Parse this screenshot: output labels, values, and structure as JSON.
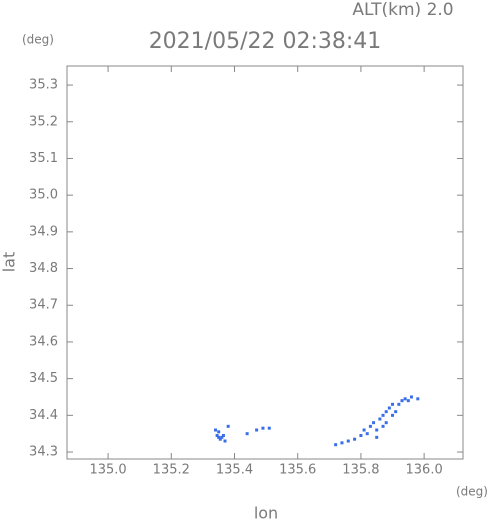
{
  "chart_data": {
    "type": "scatter",
    "title": "ALT(km) 2.0",
    "subtitle": "2021/05/22 02:38:41",
    "y_unit": "(deg)",
    "x_unit": "(deg)",
    "ylabel": "lat",
    "xlabel": "lon",
    "color": "#3a6ee8",
    "xlim": [
      134.87,
      136.123
    ],
    "ylim": [
      34.281,
      35.352
    ],
    "xticks": [
      {
        "value": 135.0,
        "label": "135.0"
      },
      135.2,
      135.4,
      135.6,
      135.8,
      {
        "value": 136.0,
        "label": "136.0"
      }
    ],
    "yticks": [
      34.3,
      34.4,
      34.5,
      34.6,
      34.7,
      34.8,
      34.9,
      {
        "value": 35.0,
        "label": "35.0"
      },
      35.1,
      35.2,
      35.3
    ],
    "x": [
      135.34,
      135.35,
      135.345,
      135.36,
      135.355,
      135.37,
      135.365,
      135.38,
      135.35,
      135.44,
      135.47,
      135.49,
      135.51,
      135.72,
      135.74,
      135.76,
      135.78,
      135.8,
      135.81,
      135.82,
      135.83,
      135.84,
      135.85,
      135.86,
      135.87,
      135.88,
      135.88,
      135.89,
      135.9,
      135.9,
      135.91,
      135.92,
      135.93,
      135.94,
      135.95,
      135.96,
      135.98,
      135.85,
      135.87
    ],
    "values": [
      34.36,
      34.355,
      34.345,
      34.34,
      34.335,
      34.33,
      34.345,
      34.37,
      34.34,
      34.35,
      34.36,
      34.365,
      34.365,
      34.32,
      34.325,
      34.33,
      34.335,
      34.345,
      34.36,
      34.35,
      34.37,
      34.38,
      34.36,
      34.39,
      34.4,
      34.41,
      34.38,
      34.42,
      34.43,
      34.4,
      34.41,
      34.43,
      34.44,
      34.445,
      34.44,
      34.45,
      34.445,
      34.34,
      34.37
    ]
  }
}
